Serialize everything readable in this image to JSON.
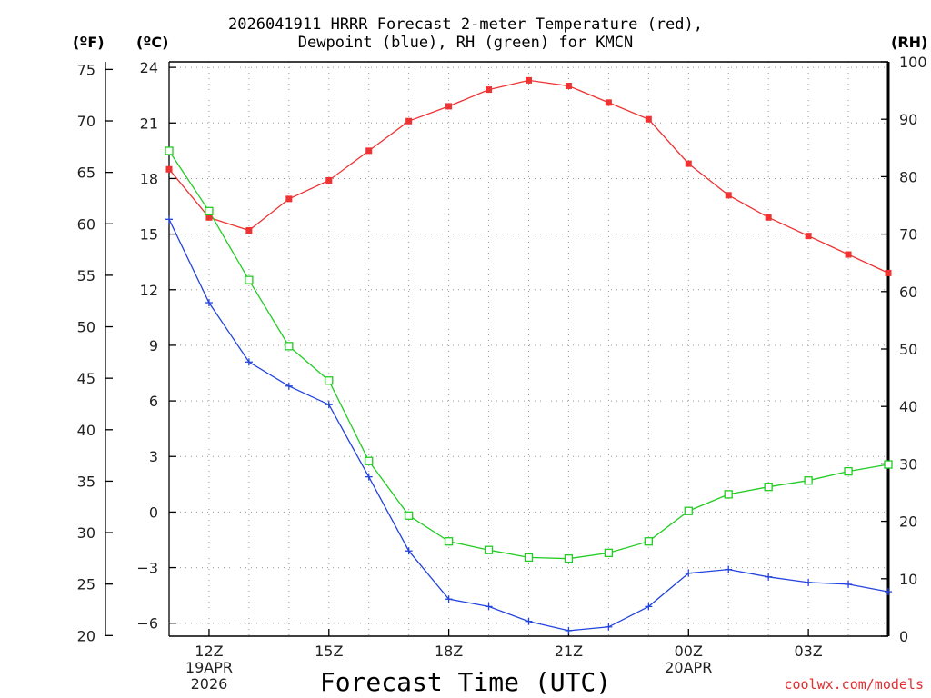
{
  "header": {
    "title_line1": "2026041911 HRRR Forecast 2-meter Temperature (red),",
    "title_line2": "Dewpoint (blue), RH (green) for KMCN"
  },
  "units": {
    "fahrenheit": "(ºF)",
    "celsius": "(ºC)",
    "rh": "(RH)"
  },
  "footer": {
    "credit": "coolwx.com/models"
  },
  "colors": {
    "temperature": "#ee3333",
    "dewpoint": "#2244dd",
    "rh": "#22cc22",
    "grid": "#999999"
  },
  "chart_data": {
    "type": "line",
    "title": "2026041911 HRRR Forecast 2-meter Temperature (red), Dewpoint (blue), RH (green) for KMCN",
    "xlabel": "Forecast Time (UTC)",
    "ylabel_left_f": "(ºF)",
    "ylabel_left_c": "(ºC)",
    "ylabel_right": "(RH)",
    "x_hours": [
      11,
      12,
      13,
      14,
      15,
      16,
      17,
      18,
      19,
      20,
      21,
      22,
      23,
      24,
      25,
      26,
      27,
      28,
      29
    ],
    "xlim": [
      11,
      29
    ],
    "ylim_c": [
      -6.7,
      24.3
    ],
    "ylim_rh": [
      0,
      100
    ],
    "c_ticks": [
      24,
      21,
      18,
      15,
      12,
      9,
      6,
      3,
      0,
      -3,
      -6
    ],
    "c_tick_labels": [
      "24",
      "21",
      "18",
      "15",
      "12",
      "9",
      "6",
      "3",
      "0",
      "−3",
      "−6"
    ],
    "f_ticks": [
      75,
      70,
      65,
      60,
      55,
      50,
      45,
      40,
      35,
      30,
      25,
      20
    ],
    "rh_ticks": [
      100,
      90,
      80,
      70,
      60,
      50,
      40,
      30,
      20,
      10,
      0
    ],
    "x_ticks": [
      {
        "hour": 12,
        "lines": [
          "12Z",
          "19APR",
          "2026"
        ]
      },
      {
        "hour": 15,
        "lines": [
          "15Z"
        ]
      },
      {
        "hour": 18,
        "lines": [
          "18Z"
        ]
      },
      {
        "hour": 21,
        "lines": [
          "21Z"
        ]
      },
      {
        "hour": 24,
        "lines": [
          "00Z",
          "20APR"
        ]
      },
      {
        "hour": 27,
        "lines": [
          "03Z"
        ]
      }
    ],
    "grid": true,
    "series": [
      {
        "name": "Temperature",
        "axis": "c",
        "marker": "filled-square",
        "values": [
          18.5,
          15.9,
          15.2,
          16.9,
          17.9,
          19.5,
          21.1,
          21.9,
          22.8,
          23.3,
          23.0,
          22.1,
          21.2,
          18.8,
          17.1,
          15.9,
          14.9,
          13.9,
          12.9
        ]
      },
      {
        "name": "Dewpoint",
        "axis": "c",
        "marker": "plus",
        "values": [
          15.8,
          11.3,
          8.1,
          6.8,
          5.8,
          1.9,
          -2.1,
          -4.7,
          -5.1,
          -5.9,
          -6.4,
          -6.2,
          -5.1,
          -3.3,
          -3.1,
          -3.5,
          -3.8,
          -3.9,
          -4.3
        ]
      },
      {
        "name": "RH",
        "axis": "rh",
        "marker": "open-square",
        "values": [
          84.5,
          74.0,
          62.0,
          50.5,
          44.5,
          30.5,
          21.0,
          16.5,
          15.0,
          13.7,
          13.5,
          14.5,
          16.5,
          21.8,
          24.7,
          26.0,
          27.1,
          28.7,
          29.9
        ]
      }
    ]
  }
}
